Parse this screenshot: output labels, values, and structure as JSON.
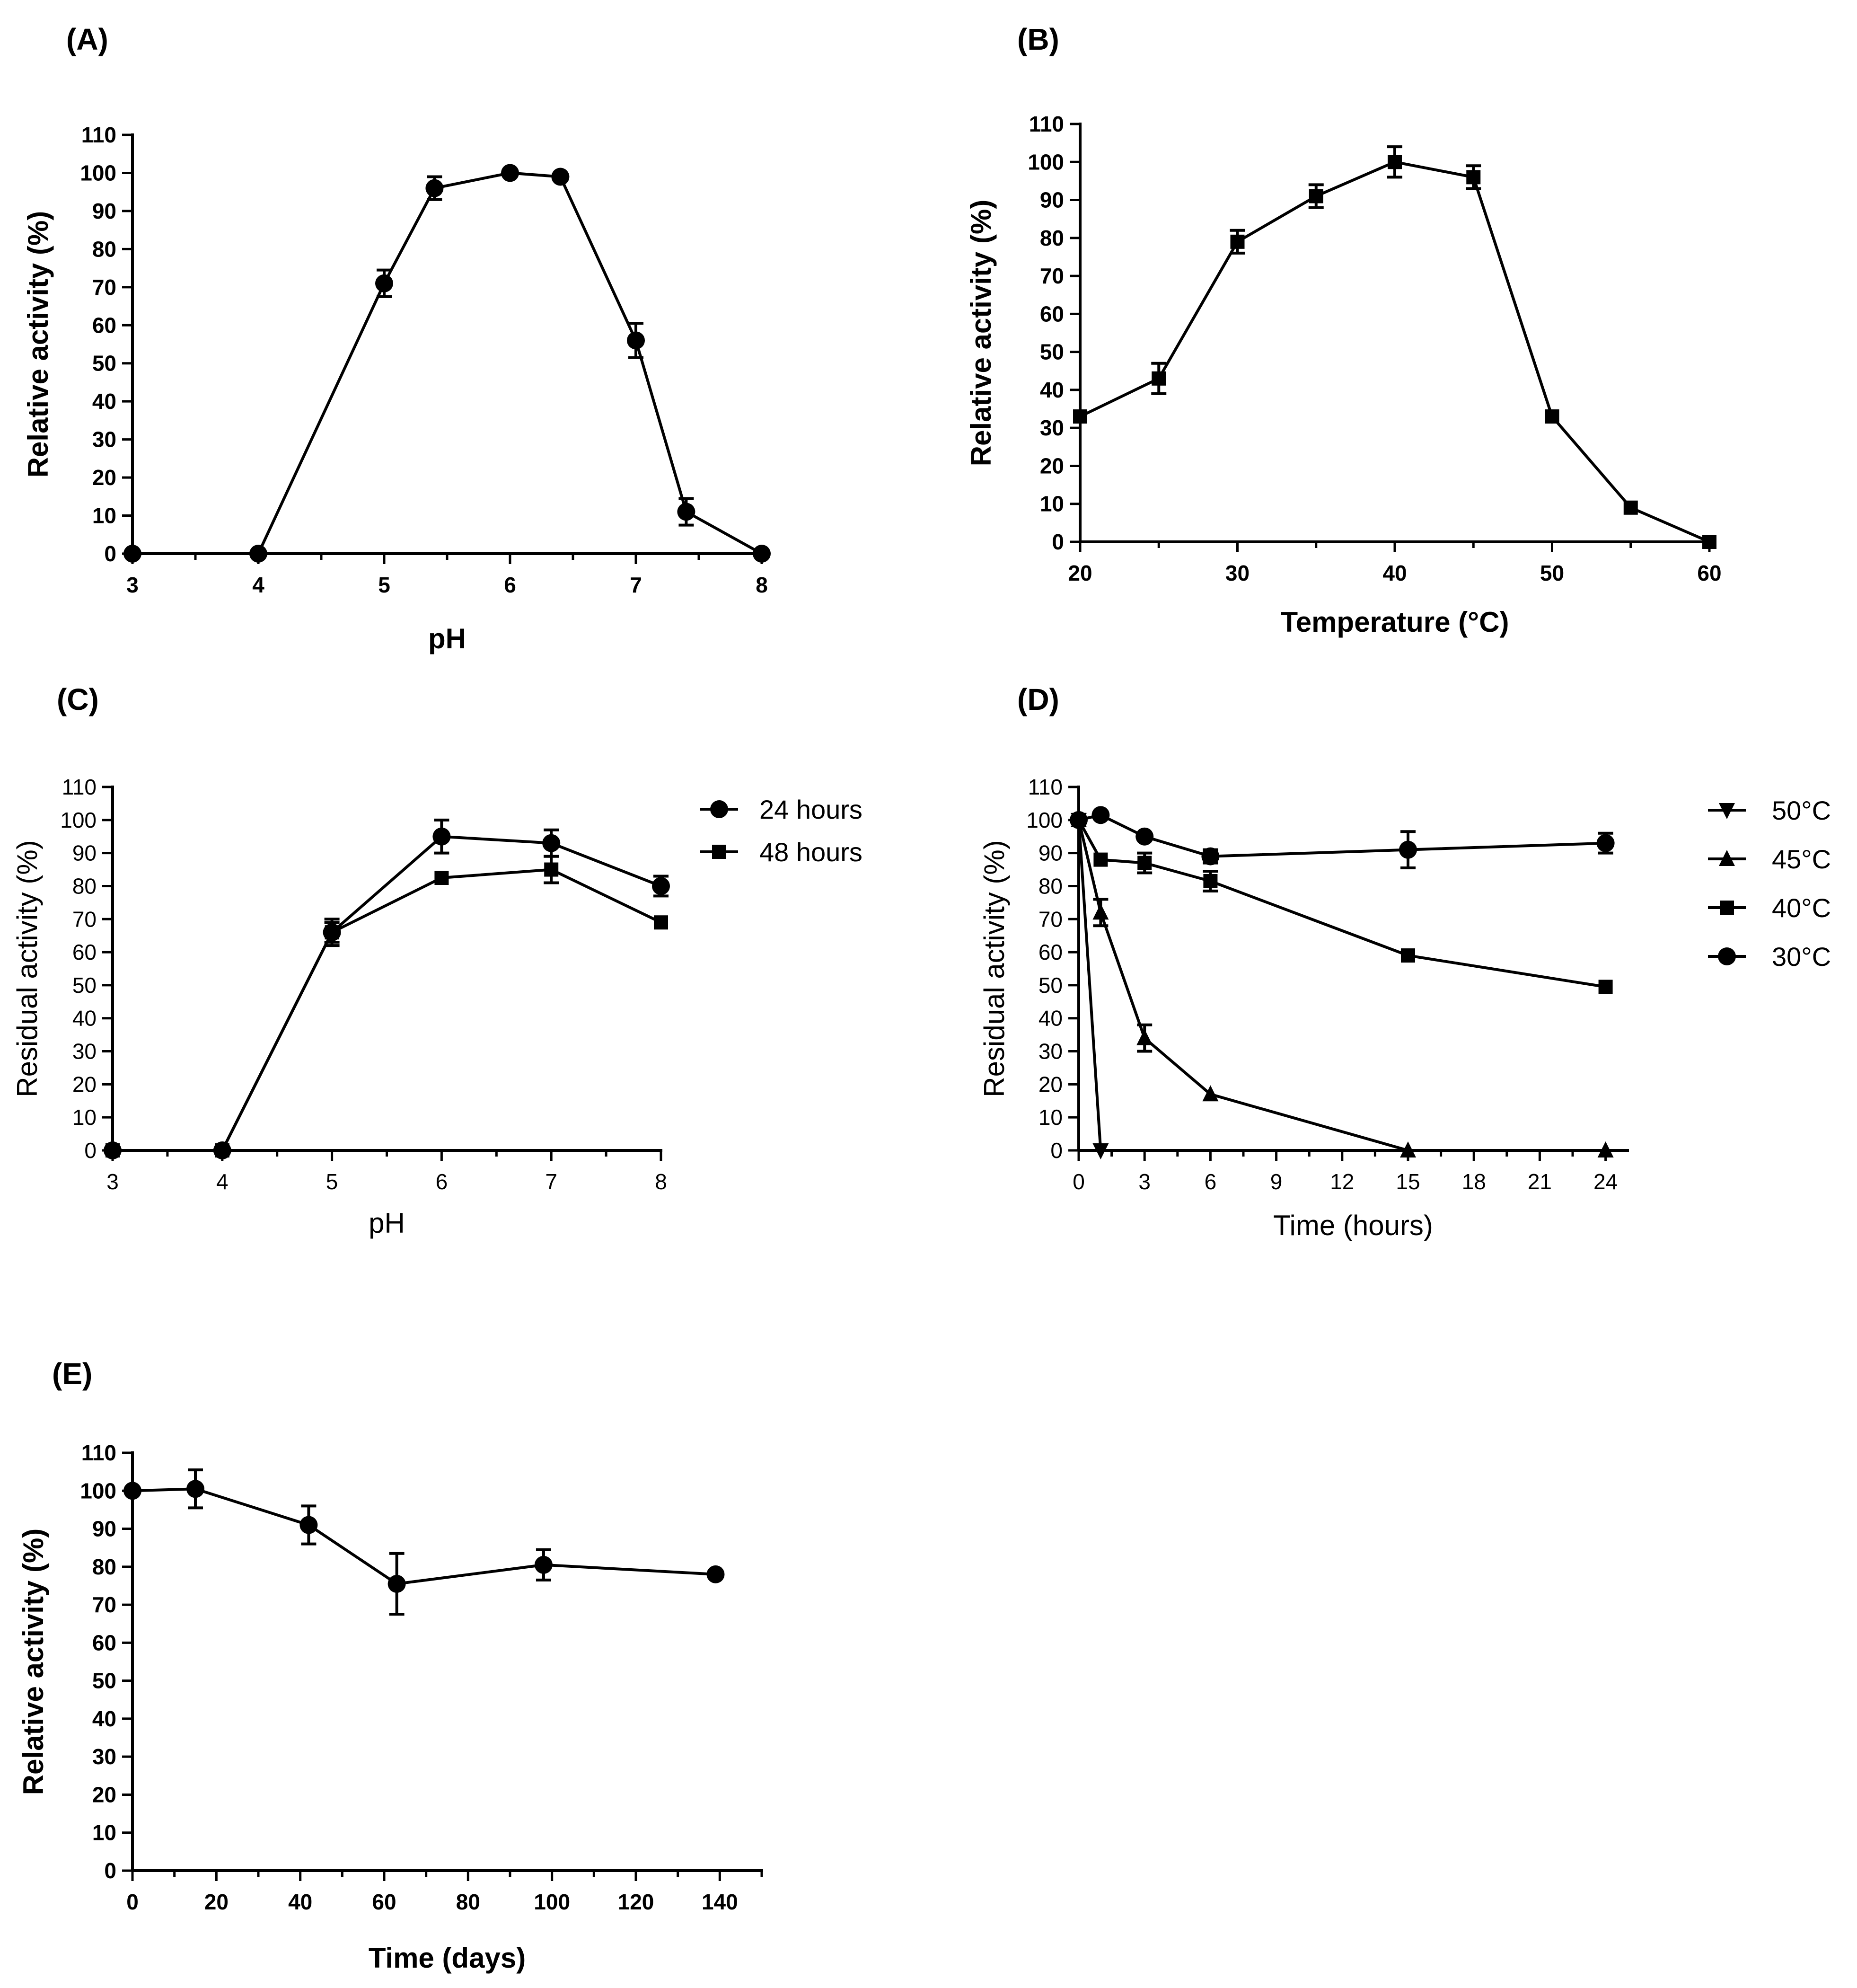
{
  "chart_data": [
    {
      "type": "line",
      "panel": "(A)",
      "xlabel": "pH",
      "ylabel": "Relative activity (%)",
      "xlim": [
        3,
        8
      ],
      "ylim": [
        0,
        110
      ],
      "xticks": [
        "3",
        "4",
        "5",
        "6",
        "7",
        "8"
      ],
      "yticks": [
        "0",
        "10",
        "20",
        "30",
        "40",
        "50",
        "60",
        "70",
        "80",
        "90",
        "100",
        "110"
      ],
      "series": [
        {
          "name": "activity",
          "marker": "circle",
          "x": [
            3,
            4,
            5,
            5.4,
            6,
            6.4,
            7,
            7.4,
            8
          ],
          "y": [
            0,
            0,
            71,
            96,
            100,
            99,
            56,
            11,
            0
          ],
          "err": [
            0,
            0,
            3.5,
            3,
            0,
            0,
            4.5,
            3.5,
            0
          ]
        }
      ]
    },
    {
      "type": "line",
      "panel": "(B)",
      "xlabel": "Temperature (°C)",
      "ylabel": "Relative activity (%)",
      "xlim": [
        20,
        60
      ],
      "ylim": [
        0,
        110
      ],
      "xticks": [
        "20",
        "30",
        "40",
        "50",
        "60"
      ],
      "yticks": [
        "0",
        "10",
        "20",
        "30",
        "40",
        "50",
        "60",
        "70",
        "80",
        "90",
        "100",
        "110"
      ],
      "series": [
        {
          "name": "activity",
          "marker": "square",
          "x": [
            20,
            25,
            30,
            35,
            40,
            45,
            50,
            55,
            60
          ],
          "y": [
            33,
            43,
            79,
            91,
            100,
            96,
            33,
            9,
            0
          ],
          "err": [
            0,
            4,
            3,
            3,
            4,
            3,
            0,
            0,
            0
          ]
        }
      ]
    },
    {
      "type": "line",
      "panel": "(C)",
      "xlabel": "pH",
      "ylabel": "Residual activity (%)",
      "xlim": [
        3,
        8
      ],
      "ylim": [
        0,
        110
      ],
      "xticks": [
        "3",
        "4",
        "5",
        "6",
        "7",
        "8"
      ],
      "yticks": [
        "0",
        "10",
        "20",
        "30",
        "40",
        "50",
        "60",
        "70",
        "80",
        "90",
        "100",
        "110"
      ],
      "legend": "right",
      "series": [
        {
          "name": "24 hours",
          "marker": "circle",
          "x": [
            3,
            4,
            5,
            6,
            7,
            8
          ],
          "y": [
            0,
            0,
            66,
            95,
            93,
            80
          ],
          "err": [
            0,
            0,
            3,
            5,
            4,
            3
          ]
        },
        {
          "name": "48 hours",
          "marker": "square",
          "x": [
            3,
            4,
            5,
            6,
            7,
            8
          ],
          "y": [
            0,
            0,
            66,
            82.5,
            85,
            69
          ],
          "err": [
            0,
            0,
            4,
            0,
            4,
            0
          ]
        }
      ]
    },
    {
      "type": "line",
      "panel": "(D)",
      "xlabel": "Time (hours)",
      "ylabel": "Residual activity (%)",
      "xlim": [
        0,
        25
      ],
      "ylim": [
        0,
        110
      ],
      "xticks": [
        "0",
        "3",
        "6",
        "9",
        "12",
        "15",
        "18",
        "21",
        "24"
      ],
      "yticks": [
        "0",
        "10",
        "20",
        "30",
        "40",
        "50",
        "60",
        "70",
        "80",
        "90",
        "100",
        "110"
      ],
      "legend": "right",
      "series": [
        {
          "name": "50°C",
          "marker": "triangle-down",
          "x": [
            0,
            1
          ],
          "y": [
            100,
            0
          ],
          "err": [
            0,
            0
          ]
        },
        {
          "name": "45°C",
          "marker": "triangle-up",
          "x": [
            0,
            1,
            3,
            6,
            15,
            24
          ],
          "y": [
            100,
            72,
            34,
            17,
            0,
            0
          ],
          "err": [
            0,
            4,
            4,
            0,
            0,
            0
          ]
        },
        {
          "name": "40°C",
          "marker": "square",
          "x": [
            0,
            1,
            3,
            6,
            15,
            24
          ],
          "y": [
            100,
            88,
            87,
            81.5,
            59,
            49.5
          ],
          "err": [
            0,
            0,
            3,
            3,
            0,
            0
          ]
        },
        {
          "name": "30°C",
          "marker": "circle",
          "x": [
            0,
            1,
            3,
            6,
            15,
            24
          ],
          "y": [
            100,
            101.5,
            95,
            89,
            91,
            93
          ],
          "err": [
            0,
            0,
            0,
            2,
            5.5,
            3
          ]
        }
      ]
    },
    {
      "type": "line",
      "panel": "(E)",
      "xlabel": "Time (days)",
      "ylabel": "Relative activity (%)",
      "xlim": [
        0,
        150
      ],
      "ylim": [
        0,
        110
      ],
      "xticks": [
        "0",
        "20",
        "40",
        "60",
        "80",
        "100",
        "120",
        "140"
      ],
      "yticks": [
        "0",
        "10",
        "20",
        "30",
        "40",
        "50",
        "60",
        "70",
        "80",
        "90",
        "100",
        "110"
      ],
      "series": [
        {
          "name": "activity",
          "marker": "circle",
          "x": [
            0,
            15,
            42,
            63,
            98,
            139
          ],
          "y": [
            100,
            100.5,
            91,
            75.5,
            80.5,
            78
          ],
          "err": [
            0,
            5,
            5,
            8,
            4,
            0
          ]
        }
      ]
    }
  ]
}
